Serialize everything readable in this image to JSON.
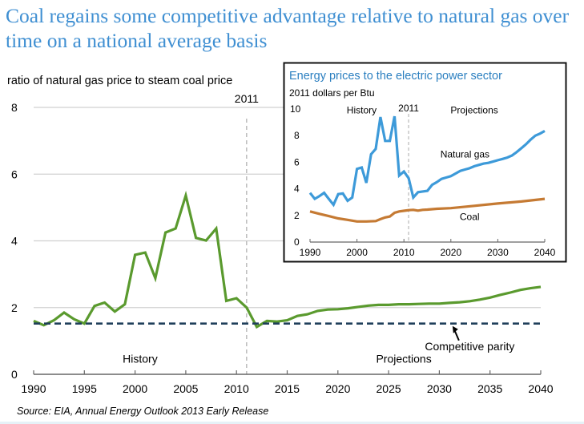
{
  "header": {
    "title": "Coal regains some competitive advantage relative to natural gas over time on a national average basis"
  },
  "source": "Source:  EIA, Annual Energy Outlook 2013 Early Release",
  "colors": {
    "title": "#3f8fd2",
    "ratio_line": "#5a9a2e",
    "parity_line": "#1f3f5a",
    "natural_gas": "#3d9ad9",
    "coal": "#c57a33",
    "gridline": "#d0d0d0",
    "inset_title": "#2b7fc0"
  },
  "chart_data": [
    {
      "id": "main",
      "type": "line",
      "title": "",
      "ylabel": "ratio of natural gas price to steam coal price",
      "xlabel": "",
      "xlim": [
        1990,
        2040
      ],
      "ylim": [
        0,
        8
      ],
      "xticks": [
        1990,
        1995,
        2000,
        2005,
        2010,
        2015,
        2020,
        2025,
        2030,
        2035,
        2040
      ],
      "yticks": [
        0,
        2,
        4,
        6,
        8
      ],
      "grid": "horizontal",
      "divider": {
        "x": 2011,
        "label": "2011"
      },
      "annotations": [
        {
          "text": "History",
          "x": 2000.5,
          "y": 0.35
        },
        {
          "text": "Projections",
          "x": 2026.5,
          "y": 0.35
        },
        {
          "text": "Competitive parity",
          "x": 2033,
          "y": 0.72,
          "arrow_to": [
            2031.3,
            1.52
          ]
        }
      ],
      "series": [
        {
          "name": "Natural gas / steam coal price ratio",
          "x": [
            1990,
            1991,
            1992,
            1993,
            1994,
            1995,
            1996,
            1997,
            1998,
            1999,
            2000,
            2001,
            2002,
            2003,
            2004,
            2005,
            2006,
            2007,
            2008,
            2009,
            2010,
            2011,
            2012,
            2013,
            2014,
            2015,
            2016,
            2017,
            2018,
            2019,
            2020,
            2021,
            2022,
            2023,
            2024,
            2025,
            2026,
            2027,
            2028,
            2029,
            2030,
            2031,
            2032,
            2033,
            2034,
            2035,
            2036,
            2037,
            2038,
            2039,
            2040
          ],
          "values": [
            1.6,
            1.47,
            1.62,
            1.85,
            1.65,
            1.52,
            2.05,
            2.15,
            1.88,
            2.1,
            3.58,
            3.65,
            2.88,
            4.25,
            4.37,
            5.36,
            4.09,
            4.01,
            4.37,
            2.2,
            2.28,
            2.0,
            1.42,
            1.6,
            1.58,
            1.62,
            1.75,
            1.8,
            1.9,
            1.94,
            1.95,
            1.98,
            2.02,
            2.06,
            2.08,
            2.08,
            2.1,
            2.1,
            2.11,
            2.12,
            2.12,
            2.14,
            2.16,
            2.19,
            2.24,
            2.3,
            2.38,
            2.45,
            2.53,
            2.58,
            2.62
          ]
        },
        {
          "name": "Competitive parity",
          "style": "dashed",
          "x": [
            1990,
            2040
          ],
          "values": [
            1.52,
            1.52
          ]
        }
      ]
    },
    {
      "id": "inset",
      "type": "line",
      "title": "Energy prices to the electric power sector",
      "ylabel": "2011 dollars per Btu",
      "xlabel": "",
      "xlim": [
        1990,
        2040
      ],
      "ylim": [
        0,
        10
      ],
      "xticks": [
        1990,
        2000,
        2010,
        2020,
        2030,
        2040
      ],
      "yticks": [
        0,
        2,
        4,
        6,
        8,
        10
      ],
      "grid": "none",
      "divider": {
        "x": 2011,
        "label": "2011"
      },
      "annotations": [
        {
          "text": "History",
          "x": 2001,
          "y": 9.9
        },
        {
          "text": "Projections",
          "x": 2025,
          "y": 9.9
        },
        {
          "text": "Natural gas",
          "x": 2023,
          "y": 6.6
        },
        {
          "text": "Coal",
          "x": 2024,
          "y": 1.9
        }
      ],
      "series": [
        {
          "name": "Natural gas",
          "x": [
            1990,
            1991,
            1992,
            1993,
            1994,
            1995,
            1996,
            1997,
            1998,
            1999,
            2000,
            2001,
            2002,
            2003,
            2004,
            2005,
            2006,
            2007,
            2008,
            2009,
            2010,
            2011,
            2012,
            2013,
            2014,
            2015,
            2016,
            2017,
            2018,
            2019,
            2020,
            2021,
            2022,
            2023,
            2024,
            2025,
            2026,
            2027,
            2028,
            2029,
            2030,
            2031,
            2032,
            2033,
            2034,
            2035,
            2036,
            2037,
            2038,
            2039,
            2040
          ],
          "values": [
            3.7,
            3.25,
            3.45,
            3.7,
            3.25,
            2.8,
            3.6,
            3.65,
            3.1,
            3.35,
            5.5,
            5.6,
            4.45,
            6.6,
            7.0,
            9.4,
            7.6,
            7.6,
            9.45,
            5.0,
            5.3,
            4.8,
            3.35,
            3.75,
            3.8,
            3.85,
            4.3,
            4.5,
            4.75,
            4.85,
            4.95,
            5.15,
            5.35,
            5.45,
            5.55,
            5.7,
            5.8,
            5.9,
            5.95,
            6.05,
            6.15,
            6.25,
            6.35,
            6.5,
            6.75,
            7.05,
            7.35,
            7.7,
            8.0,
            8.15,
            8.35
          ]
        },
        {
          "name": "Coal",
          "x": [
            1990,
            1992,
            1994,
            1996,
            1998,
            2000,
            2002,
            2004,
            2005,
            2006,
            2007,
            2008,
            2009,
            2010,
            2011,
            2012,
            2013,
            2014,
            2015,
            2017,
            2020,
            2025,
            2030,
            2035,
            2040
          ],
          "values": [
            2.3,
            2.12,
            1.95,
            1.78,
            1.67,
            1.55,
            1.55,
            1.58,
            1.72,
            1.85,
            1.92,
            2.2,
            2.3,
            2.35,
            2.4,
            2.42,
            2.36,
            2.42,
            2.44,
            2.5,
            2.55,
            2.72,
            2.9,
            3.05,
            3.25
          ]
        }
      ]
    }
  ]
}
